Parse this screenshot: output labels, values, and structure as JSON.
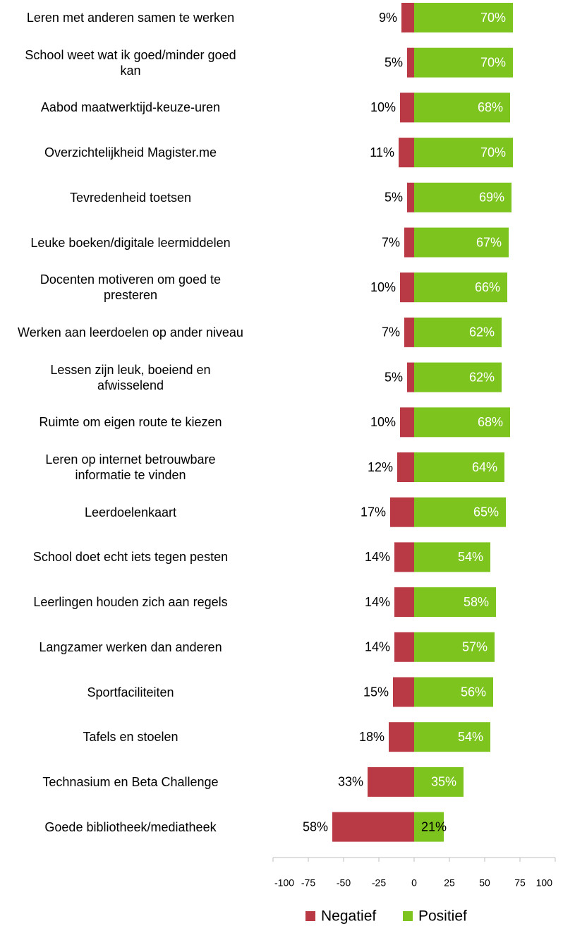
{
  "chart_data": {
    "type": "diverging-bar",
    "categories": [
      "Leren met anderen samen te werken",
      "School weet wat ik goed/minder goed kan",
      "Aabod maatwerktijd-keuze-uren",
      "Overzichtelijkheid Magister.me",
      "Tevredenheid toetsen",
      "Leuke boeken/digitale leermiddelen",
      "Docenten motiveren om goed te presteren",
      "Werken aan leerdoelen op ander niveau",
      "Lessen zijn leuk, boeiend en afwisselend",
      "Ruimte om eigen route te kiezen",
      "Leren op internet betrouwbare informatie te vinden",
      "Leerdoelenkaart",
      "School doet echt iets tegen pesten",
      "Leerlingen houden zich aan regels",
      "Langzamer werken dan anderen",
      "Sportfaciliteiten",
      "Tafels en stoelen",
      "Technasium en Beta Challenge",
      "Goede bibliotheek/mediatheek"
    ],
    "series": [
      {
        "name": "Negatief",
        "color": "#b93a45",
        "values": [
          -9,
          -5,
          -10,
          -11,
          -5,
          -7,
          -10,
          -7,
          -5,
          -10,
          -12,
          -17,
          -14,
          -14,
          -14,
          -15,
          -18,
          -33,
          -58
        ],
        "value_labels": [
          "9%",
          "5%",
          "10%",
          "11%",
          "5%",
          "7%",
          "10%",
          "7%",
          "5%",
          "10%",
          "12%",
          "17%",
          "14%",
          "14%",
          "14%",
          "15%",
          "18%",
          "33%",
          "58%"
        ]
      },
      {
        "name": "Positief",
        "color": "#7dc41f",
        "values": [
          70,
          70,
          68,
          70,
          69,
          67,
          66,
          62,
          62,
          68,
          64,
          65,
          54,
          58,
          57,
          56,
          54,
          35,
          21
        ],
        "value_labels": [
          "70%",
          "70%",
          "68%",
          "70%",
          "69%",
          "67%",
          "66%",
          "62%",
          "62%",
          "68%",
          "64%",
          "65%",
          "54%",
          "58%",
          "57%",
          "56%",
          "54%",
          "35%",
          "21%"
        ]
      }
    ],
    "xlim": [
      -100,
      100
    ],
    "xticks": [
      -100,
      -75,
      -50,
      -25,
      0,
      25,
      50,
      75,
      100
    ],
    "legend": "bottom"
  }
}
